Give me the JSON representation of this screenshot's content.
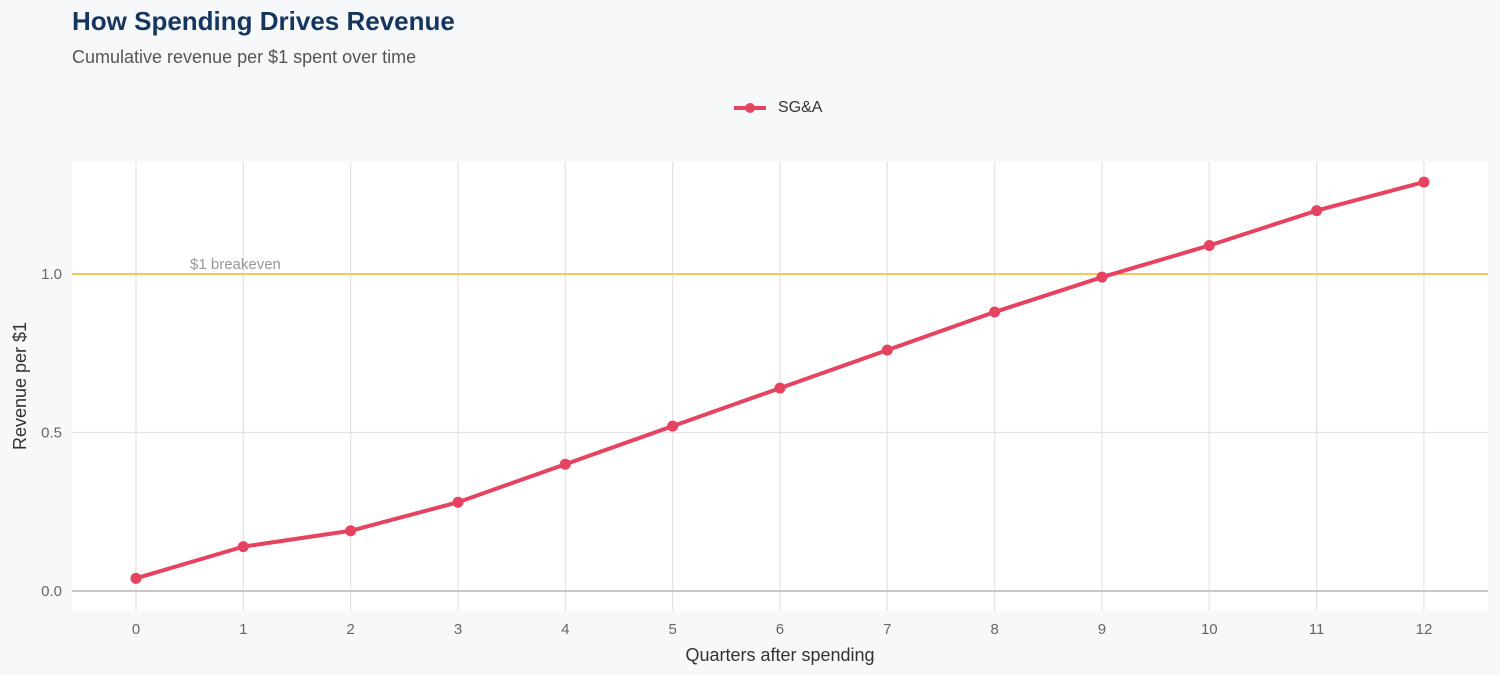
{
  "title": "How Spending Drives Revenue",
  "subtitle": "Cumulative revenue per $1 spent over time",
  "chart_data": {
    "type": "line",
    "title": "How Spending Drives Revenue",
    "subtitle": "Cumulative revenue per $1 spent over time",
    "xlabel": "Quarters after spending",
    "ylabel": "Revenue per $1",
    "x": [
      0,
      1,
      2,
      3,
      4,
      5,
      6,
      7,
      8,
      9,
      10,
      11,
      12
    ],
    "xticks": [
      "0",
      "1",
      "2",
      "3",
      "4",
      "5",
      "6",
      "7",
      "8",
      "9",
      "10",
      "11",
      "12"
    ],
    "yticks": [
      "0.0",
      "0.5",
      "1.0"
    ],
    "ylim": [
      -0.06,
      1.35
    ],
    "xlim": [
      -0.6,
      12.6
    ],
    "grid": true,
    "legend_position": "top",
    "series": [
      {
        "name": "SG&A",
        "color": "#e5435f",
        "values": [
          0.04,
          0.14,
          0.19,
          0.28,
          0.4,
          0.52,
          0.64,
          0.76,
          0.88,
          0.99,
          1.09,
          1.2,
          1.29
        ]
      }
    ],
    "reference_line": {
      "y": 1.0,
      "label": "$1 breakeven",
      "color": "#f5c560"
    }
  }
}
